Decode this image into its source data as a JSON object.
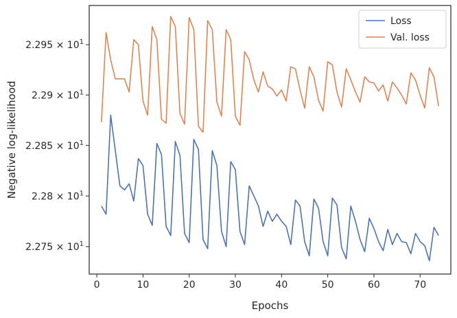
{
  "chart_data": {
    "type": "line",
    "title": "",
    "xlabel": "Epochs",
    "ylabel": "Negative log-likelihood",
    "xlim": [
      -1.65,
      76.65
    ],
    "ylim": [
      22.723,
      22.989
    ],
    "x_ticks": [
      0,
      10,
      20,
      30,
      40,
      50,
      60,
      70
    ],
    "x_tick_labels": [
      "0",
      "10",
      "20",
      "30",
      "40",
      "50",
      "60",
      "70"
    ],
    "y_ticks": [
      {
        "value": 22.75,
        "mantissa": "2.275",
        "base": "10",
        "exp": "1"
      },
      {
        "value": 22.8,
        "mantissa": "2.28",
        "base": "10",
        "exp": "1"
      },
      {
        "value": 22.85,
        "mantissa": "2.285",
        "base": "10",
        "exp": "1"
      },
      {
        "value": 22.9,
        "mantissa": "2.29",
        "base": "10",
        "exp": "1"
      },
      {
        "value": 22.95,
        "mantissa": "2.295",
        "base": "10",
        "exp": "1"
      }
    ],
    "y_scale": "log",
    "grid": false,
    "legend_position": "top-right",
    "x": [
      1,
      2,
      3,
      4,
      5,
      6,
      7,
      8,
      9,
      10,
      11,
      12,
      13,
      14,
      15,
      16,
      17,
      18,
      19,
      20,
      21,
      22,
      23,
      24,
      25,
      26,
      27,
      28,
      29,
      30,
      31,
      32,
      33,
      34,
      35,
      36,
      37,
      38,
      39,
      40,
      41,
      42,
      43,
      44,
      45,
      46,
      47,
      48,
      49,
      50,
      51,
      52,
      53,
      54,
      55,
      56,
      57,
      58,
      59,
      60,
      61,
      62,
      63,
      64,
      65,
      66,
      67,
      68,
      69,
      70,
      71,
      72,
      73,
      74
    ],
    "series": [
      {
        "name": "Loss",
        "color": "#4c72b0",
        "values": [
          22.79,
          22.782,
          22.88,
          22.845,
          22.81,
          22.806,
          22.812,
          22.795,
          22.837,
          22.83,
          22.782,
          22.771,
          22.852,
          22.841,
          22.77,
          22.761,
          22.854,
          22.84,
          22.763,
          22.754,
          22.856,
          22.846,
          22.757,
          22.748,
          22.845,
          22.83,
          22.765,
          22.75,
          22.834,
          22.826,
          22.765,
          22.752,
          22.81,
          22.8,
          22.79,
          22.77,
          22.785,
          22.775,
          22.782,
          22.775,
          22.77,
          22.752,
          22.796,
          22.79,
          22.755,
          22.741,
          22.797,
          22.788,
          22.755,
          22.741,
          22.798,
          22.791,
          22.749,
          22.738,
          22.79,
          22.775,
          22.757,
          22.745,
          22.778,
          22.768,
          22.755,
          22.746,
          22.767,
          22.752,
          22.763,
          22.755,
          22.754,
          22.743,
          22.763,
          22.755,
          22.751,
          22.736,
          22.769,
          22.761
        ]
      },
      {
        "name": "Val. loss",
        "color": "#dd8452",
        "values": [
          22.873,
          22.962,
          22.935,
          22.916,
          22.916,
          22.916,
          22.903,
          22.955,
          22.95,
          22.894,
          22.88,
          22.968,
          22.955,
          22.876,
          22.872,
          22.978,
          22.968,
          22.882,
          22.871,
          22.977,
          22.965,
          22.869,
          22.863,
          22.974,
          22.965,
          22.893,
          22.879,
          22.965,
          22.955,
          22.879,
          22.87,
          22.943,
          22.935,
          22.915,
          22.903,
          22.923,
          22.909,
          22.906,
          22.899,
          22.905,
          22.894,
          22.928,
          22.926,
          22.905,
          22.887,
          22.928,
          22.918,
          22.895,
          22.884,
          22.933,
          22.93,
          22.903,
          22.888,
          22.926,
          22.915,
          22.903,
          22.893,
          22.918,
          22.913,
          22.912,
          22.904,
          22.91,
          22.894,
          22.913,
          22.907,
          22.9,
          22.891,
          22.922,
          22.915,
          22.9,
          22.887,
          22.927,
          22.918,
          22.889
        ]
      }
    ]
  }
}
